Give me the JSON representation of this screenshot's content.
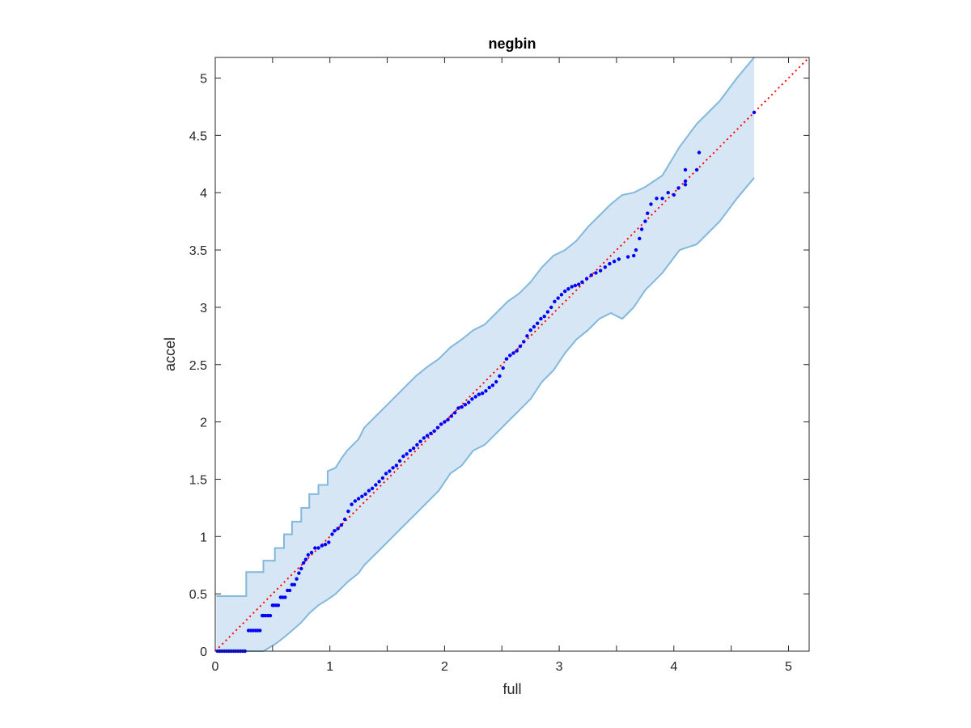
{
  "chart_data": {
    "type": "scatter",
    "title": "negbin",
    "xlabel": "full",
    "ylabel": "accel",
    "xlim": [
      0,
      5.18
    ],
    "ylim": [
      0,
      5.18
    ],
    "xticks": [
      0,
      0.5,
      1,
      1.5,
      2,
      2.5,
      3,
      3.5,
      4,
      4.5,
      5
    ],
    "xtick_labels": [
      "0",
      "",
      "1",
      "",
      "2",
      "",
      "3",
      "",
      "4",
      "",
      "5"
    ],
    "yticks": [
      0,
      0.5,
      1,
      1.5,
      2,
      2.5,
      3,
      3.5,
      4,
      4.5,
      5
    ],
    "ytick_labels": [
      "0",
      "0.5",
      "1",
      "1.5",
      "2",
      "2.5",
      "3",
      "3.5",
      "4",
      "4.5",
      "5"
    ],
    "grid": false,
    "colors": {
      "points": "#0000ff",
      "reference_line": "#ff0000",
      "band_fill": "#d6e6f4",
      "band_edge": "#82b8dc",
      "axes": "#262626"
    },
    "reference_line": {
      "x": [
        0,
        5.18
      ],
      "y": [
        0,
        5.18
      ],
      "style": "dotted"
    },
    "band": {
      "x": [
        0.01,
        0.04,
        0.27,
        0.27,
        0.42,
        0.42,
        0.52,
        0.52,
        0.6,
        0.6,
        0.67,
        0.67,
        0.75,
        0.75,
        0.82,
        0.82,
        0.9,
        0.9,
        0.98,
        0.98,
        1.05,
        1.1,
        1.15,
        1.25,
        1.3,
        1.35,
        1.45,
        1.55,
        1.65,
        1.75,
        1.85,
        1.95,
        2.05,
        2.15,
        2.25,
        2.35,
        2.45,
        2.55,
        2.65,
        2.75,
        2.85,
        2.95,
        3.05,
        3.15,
        3.25,
        3.35,
        3.45,
        3.55,
        3.65,
        3.75,
        3.9,
        4.05,
        4.2,
        4.4,
        4.55,
        4.7
      ],
      "upper": [
        0.48,
        0.48,
        0.48,
        0.69,
        0.69,
        0.79,
        0.79,
        0.9,
        0.9,
        1.02,
        1.02,
        1.13,
        1.13,
        1.25,
        1.25,
        1.37,
        1.37,
        1.45,
        1.45,
        1.57,
        1.6,
        1.68,
        1.75,
        1.85,
        1.95,
        2.0,
        2.1,
        2.2,
        2.3,
        2.4,
        2.48,
        2.55,
        2.65,
        2.72,
        2.8,
        2.85,
        2.95,
        3.05,
        3.12,
        3.22,
        3.35,
        3.45,
        3.5,
        3.58,
        3.7,
        3.8,
        3.9,
        3.98,
        4.0,
        4.05,
        4.15,
        4.4,
        4.6,
        4.8,
        5.0,
        5.18
      ],
      "lower": [
        0.0,
        0.0,
        0.0,
        0.0,
        0.0,
        0.0,
        0.06,
        0.06,
        0.12,
        0.12,
        0.18,
        0.18,
        0.25,
        0.25,
        0.33,
        0.33,
        0.4,
        0.4,
        0.45,
        0.45,
        0.5,
        0.55,
        0.6,
        0.68,
        0.75,
        0.8,
        0.9,
        1.0,
        1.1,
        1.2,
        1.3,
        1.4,
        1.55,
        1.62,
        1.75,
        1.8,
        1.9,
        2.0,
        2.1,
        2.2,
        2.35,
        2.45,
        2.6,
        2.72,
        2.8,
        2.9,
        2.95,
        2.9,
        3.0,
        3.15,
        3.3,
        3.5,
        3.55,
        3.75,
        3.95,
        4.13
      ]
    },
    "series": [
      {
        "x": [
          0.02,
          0.04,
          0.06,
          0.08,
          0.1,
          0.12,
          0.14,
          0.16,
          0.18,
          0.2,
          0.22,
          0.24,
          0.26,
          0.29,
          0.31,
          0.33,
          0.35,
          0.37,
          0.39,
          0.41,
          0.42,
          0.44,
          0.46,
          0.48,
          0.5,
          0.51,
          0.53,
          0.55,
          0.57,
          0.59,
          0.61,
          0.63,
          0.65,
          0.67,
          0.69,
          0.71,
          0.73,
          0.75,
          0.77,
          0.79,
          0.81,
          0.84,
          0.87,
          0.9,
          0.93,
          0.96,
          0.99,
          1.02,
          1.04,
          1.07,
          1.1,
          1.13,
          1.16,
          1.19,
          1.22,
          1.25,
          1.28,
          1.31,
          1.34,
          1.37,
          1.4,
          1.43,
          1.46,
          1.49,
          1.52,
          1.55,
          1.58,
          1.61,
          1.64,
          1.67,
          1.7,
          1.73,
          1.76,
          1.79,
          1.82,
          1.85,
          1.88,
          1.91,
          1.94,
          1.97,
          2.0,
          2.03,
          2.06,
          2.09,
          2.12,
          2.15,
          2.18,
          2.21,
          2.24,
          2.27,
          2.3,
          2.33,
          2.36,
          2.39,
          2.42,
          2.45,
          2.48,
          2.51,
          2.54,
          2.57,
          2.6,
          2.63,
          2.66,
          2.69,
          2.72,
          2.75,
          2.78,
          2.81,
          2.84,
          2.87,
          2.9,
          2.93,
          2.96,
          2.99,
          3.02,
          3.05,
          3.08,
          3.11,
          3.14,
          3.17,
          3.2,
          3.24,
          3.28,
          3.32,
          3.36,
          3.4,
          3.44,
          3.48,
          3.52,
          3.6,
          3.65,
          3.67,
          3.7,
          3.72,
          3.75,
          3.77,
          3.8,
          3.85,
          3.9,
          3.95,
          4.0,
          4.04,
          4.1,
          4.1,
          4.1,
          4.2,
          4.22,
          4.7
        ],
        "y": [
          0.0,
          0.0,
          0.0,
          0.0,
          0.0,
          0.0,
          0.0,
          0.0,
          0.0,
          0.0,
          0.0,
          0.0,
          0.0,
          0.18,
          0.18,
          0.18,
          0.18,
          0.18,
          0.18,
          0.31,
          0.31,
          0.31,
          0.31,
          0.31,
          0.4,
          0.4,
          0.4,
          0.4,
          0.47,
          0.47,
          0.47,
          0.53,
          0.53,
          0.58,
          0.58,
          0.63,
          0.68,
          0.72,
          0.77,
          0.8,
          0.84,
          0.86,
          0.9,
          0.9,
          0.92,
          0.93,
          0.95,
          1.02,
          1.05,
          1.07,
          1.1,
          1.15,
          1.22,
          1.28,
          1.31,
          1.33,
          1.35,
          1.37,
          1.4,
          1.42,
          1.45,
          1.48,
          1.51,
          1.55,
          1.57,
          1.6,
          1.62,
          1.66,
          1.7,
          1.72,
          1.75,
          1.77,
          1.8,
          1.83,
          1.86,
          1.88,
          1.9,
          1.92,
          1.95,
          1.98,
          2.0,
          2.02,
          2.05,
          2.08,
          2.12,
          2.13,
          2.15,
          2.17,
          2.2,
          2.22,
          2.24,
          2.25,
          2.27,
          2.3,
          2.32,
          2.35,
          2.4,
          2.47,
          2.55,
          2.58,
          2.6,
          2.62,
          2.66,
          2.7,
          2.75,
          2.8,
          2.83,
          2.86,
          2.9,
          2.92,
          2.96,
          3.0,
          3.05,
          3.08,
          3.11,
          3.14,
          3.16,
          3.18,
          3.19,
          3.2,
          3.22,
          3.25,
          3.28,
          3.3,
          3.32,
          3.35,
          3.38,
          3.4,
          3.42,
          3.44,
          3.45,
          3.5,
          3.6,
          3.68,
          3.75,
          3.82,
          3.9,
          3.95,
          3.95,
          4.0,
          3.98,
          4.04,
          4.07,
          4.2,
          4.1,
          4.2,
          4.35,
          4.7
        ]
      }
    ]
  }
}
